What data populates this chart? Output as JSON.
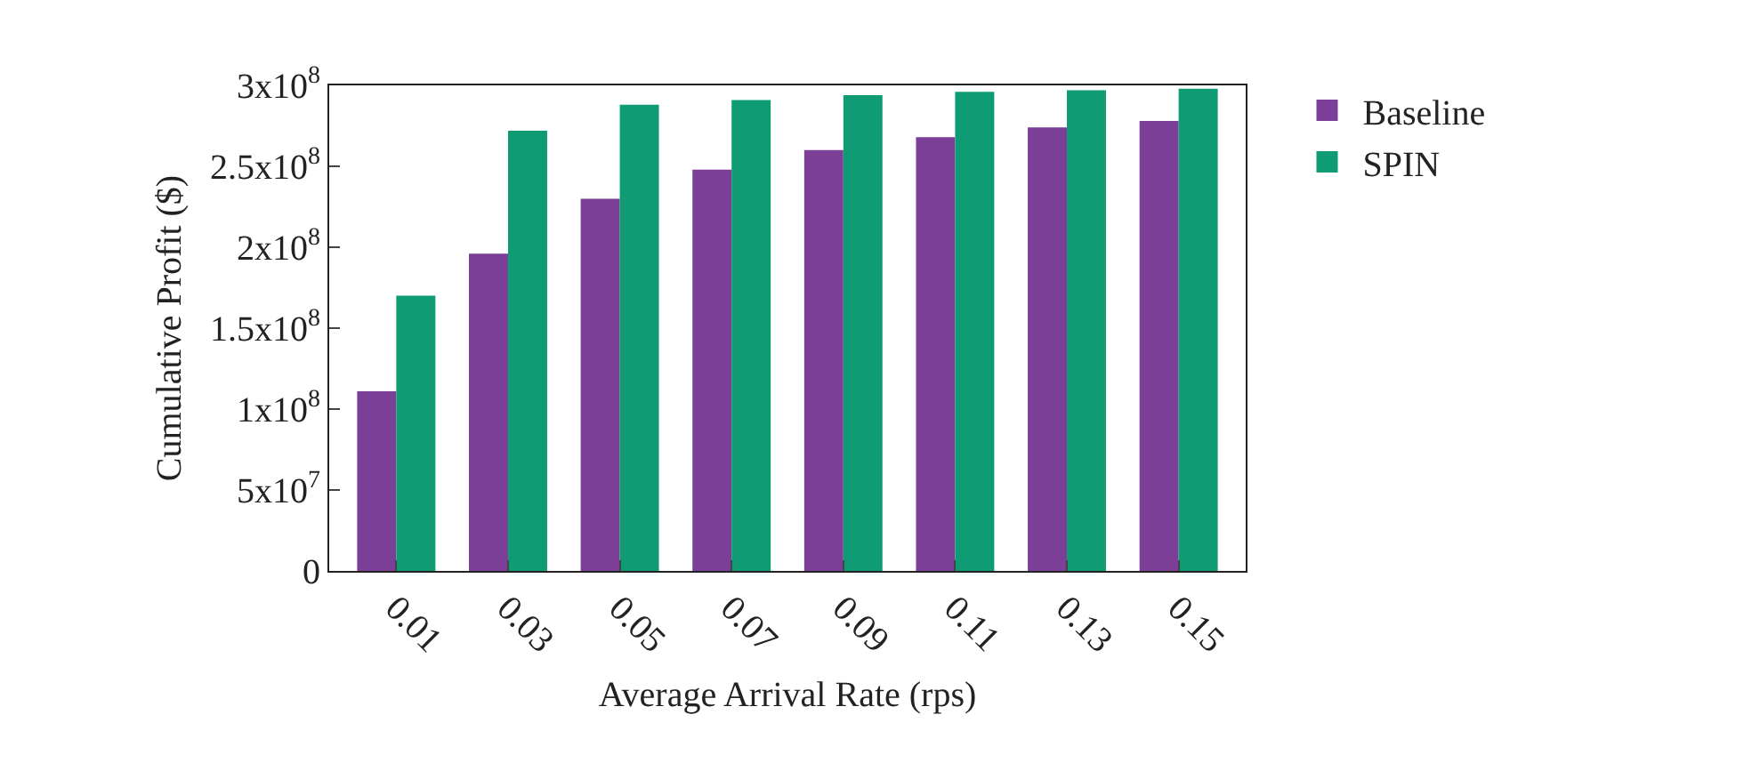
{
  "chart_data": {
    "type": "bar",
    "xlabel": "Average Arrival Rate (rps)",
    "ylabel": "Cumulative Profit ($)",
    "categories": [
      "0.01",
      "0.03",
      "0.05",
      "0.07",
      "0.09",
      "0.11",
      "0.13",
      "0.15"
    ],
    "series": [
      {
        "name": "Baseline",
        "color": "#7b3f98",
        "values": [
          111000000,
          196000000,
          230000000,
          248000000,
          260000000,
          268000000,
          274000000,
          278000000
        ]
      },
      {
        "name": "SPIN",
        "color": "#0f9b74",
        "values": [
          170000000,
          272000000,
          288000000,
          291000000,
          294000000,
          296000000,
          297000000,
          298000000
        ]
      }
    ],
    "ylim": [
      0,
      300000000
    ],
    "yticks": [
      0,
      {
        "value": 50000000,
        "label": "5x10$^{7}$"
      },
      {
        "value": 100000000,
        "label": "1x10$^{8}$"
      },
      {
        "value": 150000000,
        "label": "1.5x10$^{8}$"
      },
      {
        "value": 200000000,
        "label": "2x10$^{8}$"
      },
      {
        "value": 250000000,
        "label": "2.5x10$^{8}$"
      },
      {
        "value": 300000000,
        "label": "3x10$^{8}$"
      }
    ],
    "grid": false,
    "legend": "top right"
  }
}
